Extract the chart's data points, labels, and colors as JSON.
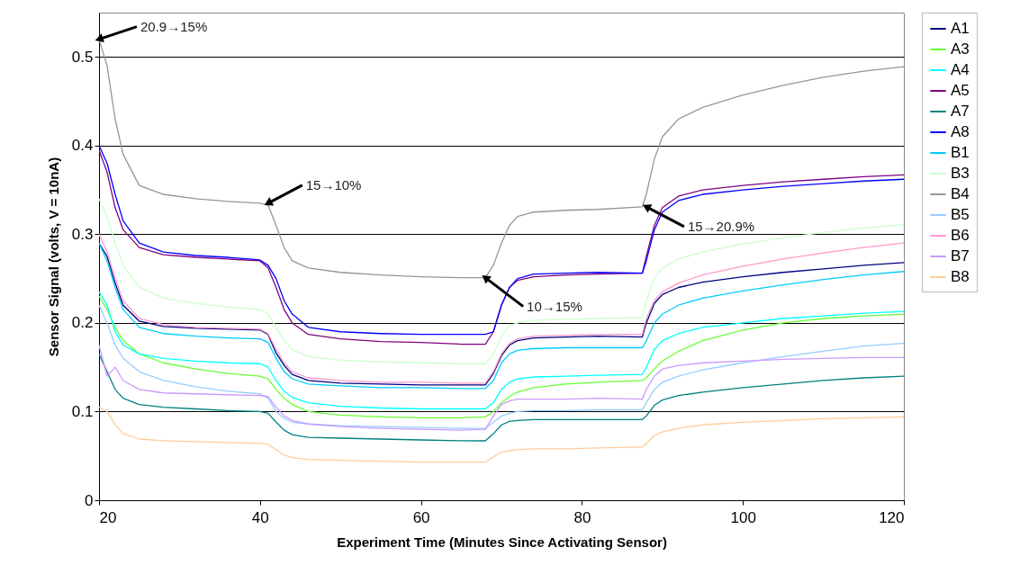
{
  "chart_data": {
    "type": "line",
    "xlabel": "Experiment Time (Minutes Since Activating Sensor)",
    "ylabel": "Sensor Signal (volts, V = 10nA)",
    "xlim": [
      20,
      120
    ],
    "xticks": [
      20,
      40,
      60,
      80,
      100,
      120
    ],
    "ylim": [
      0,
      0.55
    ],
    "yticks": [
      0,
      0.1,
      0.2,
      0.3,
      0.4,
      0.5
    ],
    "grid": "y",
    "legend": "right",
    "marker": "none",
    "line_style": "solid",
    "x": [
      20,
      21,
      22,
      23,
      25,
      28,
      32,
      36,
      40,
      41,
      42,
      43,
      44,
      46,
      50,
      55,
      60,
      65,
      68,
      69,
      70,
      71,
      72,
      74,
      78,
      82,
      87.5,
      88,
      89,
      90,
      92,
      95,
      100,
      105,
      110,
      115,
      120
    ],
    "series": [
      {
        "name": "A1",
        "color": "#000080",
        "values": [
          0.29,
          0.275,
          0.245,
          0.22,
          0.202,
          0.196,
          0.194,
          0.193,
          0.192,
          0.187,
          0.166,
          0.152,
          0.142,
          0.135,
          0.132,
          0.131,
          0.13,
          0.13,
          0.13,
          0.143,
          0.163,
          0.175,
          0.18,
          0.183,
          0.184,
          0.185,
          0.184,
          0.2,
          0.222,
          0.232,
          0.24,
          0.246,
          0.252,
          0.257,
          0.261,
          0.265,
          0.268
        ]
      },
      {
        "name": "A3",
        "color": "#66ff33",
        "values": [
          0.23,
          0.215,
          0.195,
          0.18,
          0.165,
          0.155,
          0.148,
          0.143,
          0.14,
          0.137,
          0.125,
          0.115,
          0.108,
          0.1,
          0.096,
          0.094,
          0.093,
          0.093,
          0.094,
          0.1,
          0.11,
          0.117,
          0.122,
          0.127,
          0.131,
          0.133,
          0.135,
          0.138,
          0.148,
          0.157,
          0.168,
          0.18,
          0.192,
          0.2,
          0.205,
          0.208,
          0.21
        ]
      },
      {
        "name": "A4",
        "color": "#00ffff",
        "values": [
          0.235,
          0.22,
          0.19,
          0.175,
          0.165,
          0.16,
          0.157,
          0.155,
          0.154,
          0.15,
          0.135,
          0.123,
          0.116,
          0.11,
          0.106,
          0.104,
          0.103,
          0.103,
          0.103,
          0.11,
          0.125,
          0.133,
          0.137,
          0.139,
          0.14,
          0.141,
          0.142,
          0.15,
          0.17,
          0.18,
          0.188,
          0.195,
          0.2,
          0.205,
          0.208,
          0.211,
          0.213
        ]
      },
      {
        "name": "A5",
        "color": "#800080",
        "values": [
          0.395,
          0.37,
          0.33,
          0.305,
          0.285,
          0.277,
          0.274,
          0.272,
          0.27,
          0.262,
          0.24,
          0.215,
          0.2,
          0.187,
          0.182,
          0.179,
          0.178,
          0.176,
          0.176,
          0.19,
          0.22,
          0.24,
          0.248,
          0.252,
          0.254,
          0.255,
          0.256,
          0.275,
          0.31,
          0.33,
          0.343,
          0.35,
          0.355,
          0.359,
          0.362,
          0.365,
          0.367
        ]
      },
      {
        "name": "A7",
        "color": "#008080",
        "values": [
          0.165,
          0.145,
          0.125,
          0.115,
          0.108,
          0.105,
          0.103,
          0.101,
          0.1,
          0.098,
          0.088,
          0.079,
          0.074,
          0.071,
          0.07,
          0.069,
          0.068,
          0.067,
          0.067,
          0.075,
          0.085,
          0.089,
          0.09,
          0.091,
          0.091,
          0.091,
          0.091,
          0.095,
          0.107,
          0.113,
          0.118,
          0.122,
          0.127,
          0.131,
          0.135,
          0.138,
          0.14
        ]
      },
      {
        "name": "A8",
        "color": "#0000ff",
        "values": [
          0.4,
          0.38,
          0.345,
          0.315,
          0.29,
          0.28,
          0.276,
          0.274,
          0.271,
          0.265,
          0.25,
          0.225,
          0.21,
          0.195,
          0.19,
          0.188,
          0.187,
          0.187,
          0.187,
          0.19,
          0.22,
          0.24,
          0.25,
          0.255,
          0.256,
          0.257,
          0.256,
          0.27,
          0.305,
          0.325,
          0.338,
          0.345,
          0.35,
          0.354,
          0.357,
          0.36,
          0.362
        ]
      },
      {
        "name": "B1",
        "color": "#00ccff",
        "values": [
          0.29,
          0.27,
          0.24,
          0.215,
          0.195,
          0.188,
          0.185,
          0.183,
          0.182,
          0.178,
          0.16,
          0.145,
          0.137,
          0.131,
          0.129,
          0.127,
          0.127,
          0.126,
          0.126,
          0.135,
          0.155,
          0.165,
          0.169,
          0.171,
          0.172,
          0.172,
          0.172,
          0.18,
          0.2,
          0.21,
          0.22,
          0.228,
          0.236,
          0.243,
          0.249,
          0.254,
          0.258
        ]
      },
      {
        "name": "B3",
        "color": "#ccffcc",
        "values": [
          0.34,
          0.32,
          0.29,
          0.265,
          0.24,
          0.228,
          0.222,
          0.218,
          0.215,
          0.21,
          0.195,
          0.18,
          0.17,
          0.162,
          0.158,
          0.156,
          0.155,
          0.154,
          0.154,
          0.165,
          0.185,
          0.197,
          0.2,
          0.203,
          0.204,
          0.205,
          0.206,
          0.225,
          0.25,
          0.262,
          0.272,
          0.28,
          0.289,
          0.296,
          0.302,
          0.307,
          0.311
        ]
      },
      {
        "name": "B4",
        "color": "#969696",
        "values": [
          0.52,
          0.49,
          0.43,
          0.39,
          0.355,
          0.345,
          0.34,
          0.337,
          0.335,
          0.333,
          0.31,
          0.285,
          0.27,
          0.262,
          0.257,
          0.254,
          0.252,
          0.251,
          0.251,
          0.265,
          0.29,
          0.31,
          0.32,
          0.325,
          0.327,
          0.328,
          0.331,
          0.345,
          0.385,
          0.41,
          0.43,
          0.443,
          0.457,
          0.468,
          0.477,
          0.484,
          0.489
        ]
      },
      {
        "name": "B5",
        "color": "#99ccff",
        "values": [
          0.22,
          0.2,
          0.175,
          0.16,
          0.145,
          0.135,
          0.128,
          0.123,
          0.12,
          0.115,
          0.1,
          0.092,
          0.088,
          0.086,
          0.084,
          0.083,
          0.082,
          0.081,
          0.081,
          0.088,
          0.095,
          0.098,
          0.1,
          0.101,
          0.101,
          0.102,
          0.102,
          0.11,
          0.125,
          0.133,
          0.14,
          0.147,
          0.155,
          0.162,
          0.168,
          0.174,
          0.177
        ]
      },
      {
        "name": "B6",
        "color": "#ff99cc",
        "values": [
          0.3,
          0.28,
          0.25,
          0.225,
          0.205,
          0.198,
          0.195,
          0.194,
          0.193,
          0.188,
          0.17,
          0.155,
          0.145,
          0.138,
          0.135,
          0.133,
          0.133,
          0.132,
          0.132,
          0.145,
          0.165,
          0.177,
          0.182,
          0.185,
          0.186,
          0.187,
          0.187,
          0.205,
          0.225,
          0.235,
          0.245,
          0.254,
          0.264,
          0.272,
          0.279,
          0.285,
          0.29
        ]
      },
      {
        "name": "B7",
        "color": "#cc99ff",
        "values": [
          0.175,
          0.14,
          0.15,
          0.135,
          0.125,
          0.121,
          0.12,
          0.119,
          0.118,
          0.117,
          0.105,
          0.095,
          0.09,
          0.086,
          0.083,
          0.081,
          0.08,
          0.079,
          0.08,
          0.095,
          0.108,
          0.112,
          0.114,
          0.114,
          0.114,
          0.115,
          0.114,
          0.125,
          0.14,
          0.148,
          0.152,
          0.155,
          0.157,
          0.159,
          0.16,
          0.161,
          0.161
        ]
      },
      {
        "name": "B8",
        "color": "#ffcc99",
        "values": [
          0.105,
          0.1,
          0.085,
          0.075,
          0.069,
          0.067,
          0.066,
          0.065,
          0.064,
          0.063,
          0.057,
          0.051,
          0.048,
          0.046,
          0.045,
          0.044,
          0.043,
          0.043,
          0.043,
          0.049,
          0.054,
          0.056,
          0.057,
          0.058,
          0.058,
          0.059,
          0.06,
          0.064,
          0.073,
          0.077,
          0.081,
          0.085,
          0.088,
          0.09,
          0.092,
          0.093,
          0.094
        ]
      }
    ],
    "annotations": [
      {
        "text": "20.9→15%",
        "x": 20,
        "y": 0.52
      },
      {
        "text": "15→10%",
        "x": 41,
        "y": 0.335
      },
      {
        "text": "10→15%",
        "x": 68,
        "y": 0.251
      },
      {
        "text": "15→20.9%",
        "x": 88,
        "y": 0.331
      }
    ]
  }
}
